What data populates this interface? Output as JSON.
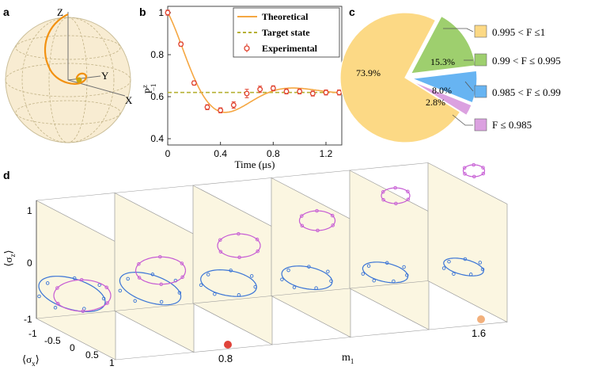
{
  "panels": {
    "a": {
      "label": "a",
      "axis_labels": [
        "Z",
        "Y",
        "X"
      ],
      "colors": {
        "sphere_fill": "#f8ecd2",
        "sphere_edge": "#cbbf9a",
        "trajectory": "#f29111",
        "point": "#c9a70a"
      }
    },
    "b": {
      "label": "b",
      "chart_data": {
        "type": "line",
        "xlabel": "Time (μs)",
        "ylabel": "P",
        "ylabel_sup": "z",
        "ylabel_sub": "−1",
        "xlim": [
          0,
          1.32
        ],
        "ylim": [
          0.37,
          1.03
        ],
        "xticks": [
          0,
          0.4,
          0.8,
          1.2
        ],
        "xtick_labels": [
          "0",
          "0.4",
          "0.8",
          "1.2"
        ],
        "yticks": [
          0.4,
          0.6,
          0.8,
          1.0
        ],
        "ytick_labels": [
          "0.4",
          "0.6",
          "0.8",
          "1"
        ],
        "legend": [
          "Theoretical",
          "Target state",
          "Experimental"
        ],
        "legend_position": "top-right",
        "target_value": 0.62,
        "experimental": {
          "x": [
            0,
            0.1,
            0.2,
            0.3,
            0.4,
            0.5,
            0.6,
            0.7,
            0.8,
            0.9,
            1.0,
            1.1,
            1.2,
            1.3
          ],
          "y": [
            1.0,
            0.85,
            0.665,
            0.55,
            0.535,
            0.56,
            0.615,
            0.635,
            0.64,
            0.625,
            0.625,
            0.615,
            0.62,
            0.62
          ],
          "err": [
            0.012,
            0.01,
            0.01,
            0.012,
            0.012,
            0.015,
            0.02,
            0.015,
            0.012,
            0.012,
            0.012,
            0.012,
            0.012,
            0.012
          ]
        },
        "colors": {
          "theory": "#f5a742",
          "target": "#b6b034",
          "exp": "#e0422e"
        }
      }
    },
    "c": {
      "label": "c",
      "chart_data": {
        "type": "pie",
        "values": [
          73.9,
          15.3,
          8.0,
          2.8
        ],
        "slice_labels": [
          "73.9%",
          "15.3%",
          "8.0%",
          "2.8%"
        ],
        "legend": [
          "0.995 < F ≤1",
          "0.99 < F ≤ 0.995",
          "0.985 < F ≤ 0.99",
          "F ≤ 0.985"
        ],
        "colors": [
          "#fcd985",
          "#9ecf6e",
          "#67b4f2",
          "#dba1e0"
        ]
      }
    },
    "d": {
      "label": "d",
      "z_label": "⟨σ",
      "z_sub": "z",
      "x_label": "⟨σ",
      "x_sub": "x",
      "m_label": "m",
      "m_sub": "1",
      "z_ticks": [
        "1",
        "0",
        "-1"
      ],
      "x_ticks": [
        "-1",
        "-0.5",
        "0",
        "0.5",
        "1"
      ],
      "m_ticks": [
        "0.8",
        "1.6"
      ],
      "colors": {
        "panel": "#fbf6e1",
        "panel_side": "#f2ebcd",
        "edge": "#9a9a9a",
        "blue": "#3a74d6",
        "purple": "#c65bd4",
        "dot_red": "#e0433a",
        "dot_orange": "#f2b07c"
      }
    }
  }
}
